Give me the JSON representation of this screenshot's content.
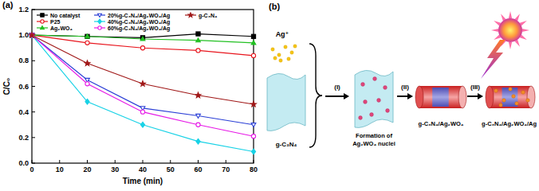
{
  "chart_data": {
    "type": "line",
    "title": "(a)",
    "x_label": "Time (min)",
    "y_label": "C/C₀",
    "x": [
      0,
      20,
      40,
      60,
      80
    ],
    "xlim": [
      0,
      80
    ],
    "xticks": [
      0,
      10,
      20,
      30,
      40,
      50,
      60,
      70,
      80
    ],
    "ylim": [
      0,
      1.2
    ],
    "yticks": [
      {
        "value": 0,
        "label": "0.0"
      },
      0.2,
      0.4,
      0.6,
      0.8,
      {
        "value": 1,
        "label": "1.0"
      },
      1.2
    ],
    "grid": false,
    "legend": "top",
    "series": [
      {
        "name": "No catalyst",
        "color": "#000000",
        "marker": "square",
        "values": [
          1.0,
          0.99,
          0.98,
          1.01,
          0.99
        ]
      },
      {
        "name": "P25",
        "color": "#e8141c",
        "marker": "circle-open",
        "values": [
          1.0,
          0.94,
          0.9,
          0.88,
          0.84
        ]
      },
      {
        "name": "Ag₂WO₄",
        "color": "#22c022",
        "marker": "triangle",
        "values": [
          1.0,
          0.99,
          0.97,
          0.96,
          0.94
        ]
      },
      {
        "name": "20%g-C₃N₄/Ag₂WO₄/Ag",
        "color": "#2b3fd6",
        "marker": "triangle-down-open",
        "values": [
          1.0,
          0.65,
          0.43,
          0.37,
          0.3
        ]
      },
      {
        "name": "40%g-C₃N₄/Ag₂WO₄/Ag",
        "color": "#18d2e6",
        "marker": "diamond",
        "values": [
          1.0,
          0.48,
          0.3,
          0.17,
          0.09
        ]
      },
      {
        "name": "60%g-C₃N₄/Ag₂WO₄/Ag",
        "color": "#e619e6",
        "marker": "circle-open",
        "values": [
          1.0,
          0.62,
          0.4,
          0.3,
          0.21
        ]
      },
      {
        "name": "g-C₃N₄",
        "color": "#a01818",
        "marker": "star",
        "values": [
          1.0,
          0.78,
          0.62,
          0.53,
          0.46
        ]
      }
    ]
  },
  "diagram": {
    "label": "(b)",
    "ion": "Ag⁺",
    "support": "g-C₃N₄",
    "steps": [
      "(I)",
      "(II)",
      "(III)"
    ],
    "stages": [
      {
        "label_lines": [
          "Formation of",
          "Ag₂WO₄ nuclei"
        ]
      },
      {
        "label_lines": [
          "g-C₃N₄/Ag₂WO₄"
        ]
      },
      {
        "label_lines": [
          "g-C₃N₄/Ag₂WO₄/Ag"
        ]
      }
    ]
  }
}
